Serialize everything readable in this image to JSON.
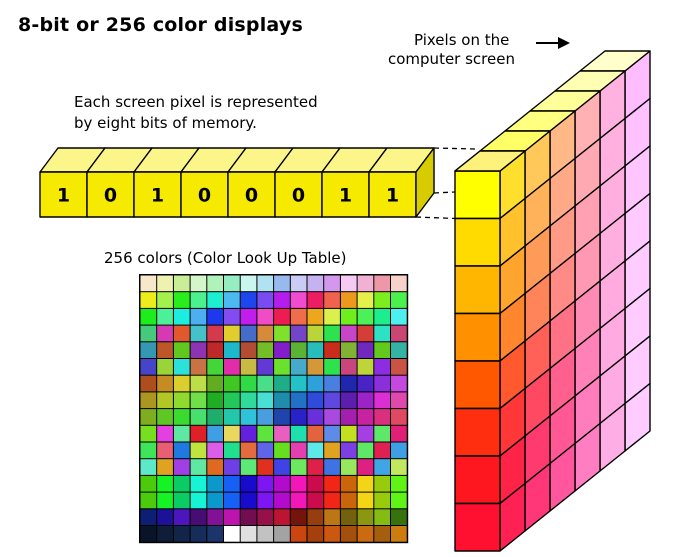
{
  "title": "8-bit or 256 color displays",
  "pixels_label": {
    "line1": "Pixels on the",
    "line2": "computer screen"
  },
  "memory_label": {
    "line1": "Each screen pixel is represented",
    "line2": "by eight bits of memory."
  },
  "bits": [
    "1",
    "0",
    "1",
    "0",
    "0",
    "0",
    "1",
    "1"
  ],
  "lut_label": "256 colors (Color Look Up Table)",
  "colors": {
    "bit_front": "#f5ea00",
    "bit_top": "#fbf58a",
    "bit_side": "#d7cc00",
    "screen_yellow": "#ffff00",
    "screen_orange": "#ff8a00",
    "screen_red": "#ff1a1a",
    "screen_magenta": "#ff33ff",
    "screen_pink": "#ffccff"
  }
}
